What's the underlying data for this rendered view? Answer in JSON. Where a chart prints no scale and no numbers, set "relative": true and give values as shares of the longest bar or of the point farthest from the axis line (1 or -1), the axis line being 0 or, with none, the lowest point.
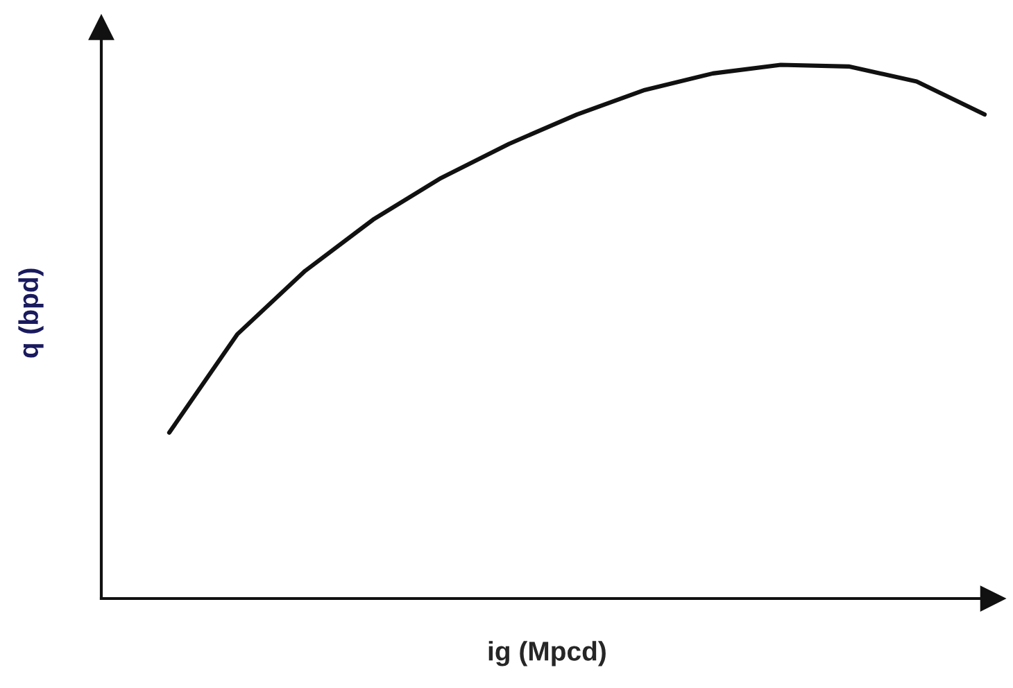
{
  "chart_data": {
    "type": "line",
    "xlabel": "ig (Mpcd)",
    "ylabel": "q (bpd)",
    "relative": true,
    "marker": "none",
    "line_style": "solid",
    "categories": [
      null,
      null,
      null,
      null,
      null,
      null,
      null,
      null,
      null,
      null,
      null,
      null,
      null
    ],
    "series": [
      {
        "color": "#111111",
        "values": [
          0.311,
          0.495,
          0.614,
          0.71,
          0.788,
          0.852,
          0.907,
          0.953,
          0.984,
          1.0,
          0.997,
          0.969,
          0.907
        ]
      }
    ]
  }
}
